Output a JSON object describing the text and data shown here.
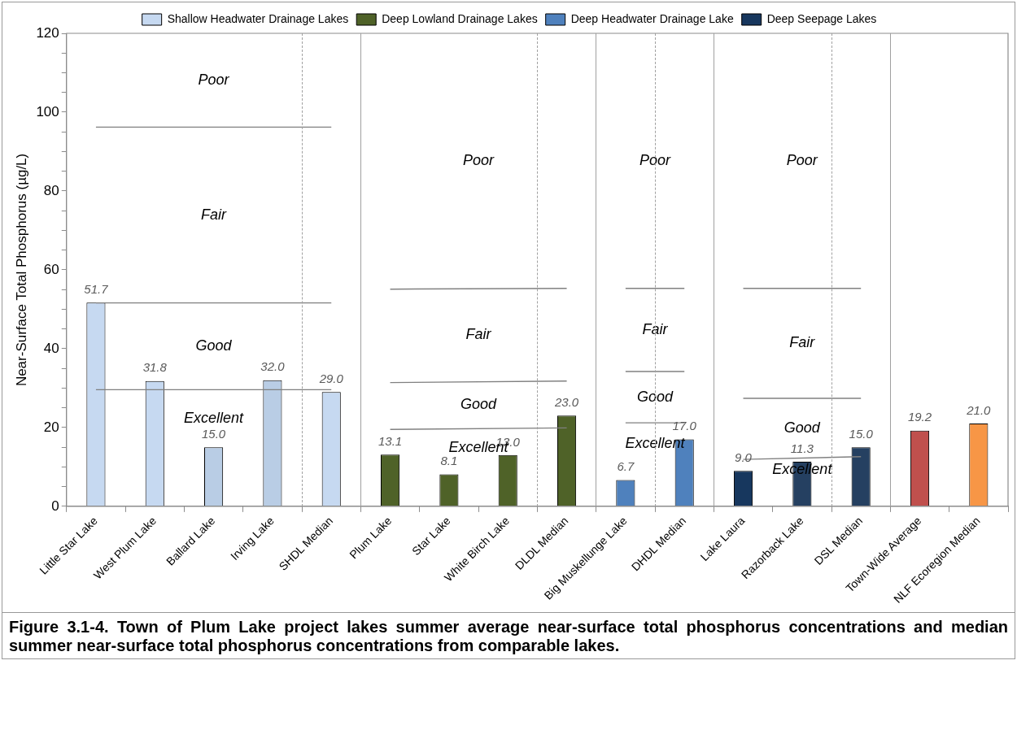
{
  "chart_data": {
    "type": "bar",
    "title": "Figure 3.1-4.  Town of Plum Lake project lakes summer average near-surface total phosphorus concentrations and median summer near-surface total phosphorus concentrations from comparable lakes.",
    "ylabel": "Near-Surface Total Phosphorus (µg/L)",
    "categories": [
      "Little Star Lake",
      "West Plum Lake",
      "Ballard Lake",
      "Irving Lake",
      "SHDL Median",
      "Plum Lake",
      "Star Lake",
      "White Birch Lake",
      "DLDL Median",
      "Big Muskellunge Lake",
      "DHDL Median",
      "Lake Laura",
      "Razorback Lake",
      "DSL Median",
      "Town-Wide Average",
      "NLF Ecoregion Median"
    ],
    "series": [
      {
        "name": "Shallow Headwater Drainage Lakes",
        "color": "#c6d9f1",
        "colors": [
          "#c6d9f1",
          "#c6d9f1",
          "#b9cde5",
          "#b9cde5",
          "#c6d9f1",
          null,
          null,
          null,
          null,
          null,
          null,
          null,
          null,
          null,
          null,
          null
        ],
        "values": [
          51.7,
          31.8,
          15.0,
          32.0,
          29.0,
          null,
          null,
          null,
          null,
          null,
          null,
          null,
          null,
          null,
          null,
          null
        ],
        "value_labels": [
          "51.7",
          "31.8",
          "15.0",
          "32.0",
          "29.0",
          null,
          null,
          null,
          null,
          null,
          null,
          null,
          null,
          null,
          null,
          null
        ]
      },
      {
        "name": "Deep Lowland Drainage Lakes",
        "color": "#4f6228",
        "values": [
          null,
          null,
          null,
          null,
          null,
          13.1,
          8.1,
          13.0,
          23.0,
          null,
          null,
          null,
          null,
          null,
          null,
          null
        ],
        "value_labels": [
          null,
          null,
          null,
          null,
          null,
          "13.1",
          "8.1",
          "13.0",
          "23.0",
          null,
          null,
          null,
          null,
          null,
          null,
          null
        ]
      },
      {
        "name": "Deep Headwater Drainage Lake",
        "color": "#4f81bd",
        "values": [
          null,
          null,
          null,
          null,
          null,
          null,
          null,
          null,
          null,
          6.7,
          17.0,
          null,
          null,
          null,
          null,
          null
        ],
        "value_labels": [
          null,
          null,
          null,
          null,
          null,
          null,
          null,
          null,
          null,
          "6.7",
          "17.0",
          null,
          null,
          null,
          null,
          null
        ]
      },
      {
        "name": "Deep Seepage Lakes",
        "color": "#17375e",
        "colors": [
          null,
          null,
          null,
          null,
          null,
          null,
          null,
          null,
          null,
          null,
          null,
          "#17375e",
          "#254061",
          "#254061",
          null,
          null
        ],
        "values": [
          null,
          null,
          null,
          null,
          null,
          null,
          null,
          null,
          null,
          null,
          null,
          9.0,
          11.3,
          15.0,
          null,
          null
        ],
        "value_labels": [
          null,
          null,
          null,
          null,
          null,
          null,
          null,
          null,
          null,
          null,
          null,
          "9.0",
          "11.3",
          "15.0",
          null,
          null
        ]
      },
      {
        "colors": [
          null,
          null,
          null,
          null,
          null,
          null,
          null,
          null,
          null,
          null,
          null,
          null,
          null,
          null,
          "#c0504d",
          "#f79646"
        ],
        "color": "#c0504d",
        "values": [
          null,
          null,
          null,
          null,
          null,
          null,
          null,
          null,
          null,
          null,
          null,
          null,
          null,
          null,
          19.2,
          21.0
        ],
        "value_labels": [
          null,
          null,
          null,
          null,
          null,
          null,
          null,
          null,
          null,
          null,
          null,
          null,
          null,
          null,
          "19.2",
          "21.0"
        ]
      },
      {
        "type": "line",
        "color": "#808080",
        "values": [
          96.2,
          null,
          null,
          null,
          96.2,
          null,
          null,
          null,
          null,
          null,
          null,
          null,
          null,
          null,
          null,
          null
        ]
      },
      {
        "type": "line",
        "color": "#808080",
        "values": [
          51.6,
          null,
          null,
          null,
          51.6,
          null,
          null,
          null,
          null,
          null,
          null,
          null,
          null,
          null,
          null,
          null
        ]
      },
      {
        "type": "line",
        "color": "#808080",
        "values": [
          29.6,
          null,
          null,
          null,
          29.6,
          null,
          null,
          null,
          null,
          null,
          null,
          null,
          null,
          null,
          null,
          null
        ]
      },
      {
        "type": "line",
        "color": "#808080",
        "values": [
          null,
          null,
          null,
          null,
          null,
          55.1,
          null,
          null,
          55.3,
          null,
          null,
          null,
          null,
          null,
          null,
          null
        ]
      },
      {
        "type": "line",
        "color": "#808080",
        "values": [
          null,
          null,
          null,
          null,
          null,
          31.4,
          null,
          null,
          31.8,
          null,
          null,
          null,
          null,
          null,
          null,
          null
        ]
      },
      {
        "type": "line",
        "color": "#808080",
        "values": [
          null,
          null,
          null,
          null,
          null,
          19.5,
          null,
          null,
          19.9,
          null,
          null,
          null,
          null,
          null,
          null,
          null
        ]
      },
      {
        "type": "line",
        "color": "#808080",
        "values": [
          null,
          null,
          null,
          null,
          null,
          null,
          null,
          null,
          null,
          55.3,
          55.3,
          null,
          null,
          null,
          null,
          null
        ]
      },
      {
        "type": "line",
        "color": "#808080",
        "values": [
          null,
          null,
          null,
          null,
          null,
          null,
          null,
          null,
          null,
          34.2,
          34.2,
          null,
          null,
          null,
          null,
          null
        ]
      },
      {
        "type": "line",
        "color": "#808080",
        "values": [
          null,
          null,
          null,
          null,
          null,
          null,
          null,
          null,
          null,
          21.2,
          21.2,
          null,
          null,
          null,
          null,
          null
        ]
      },
      {
        "type": "line",
        "color": "#808080",
        "values": [
          null,
          null,
          null,
          null,
          null,
          null,
          null,
          null,
          null,
          null,
          null,
          55.3,
          null,
          55.3,
          null,
          null
        ]
      },
      {
        "type": "line",
        "color": "#808080",
        "values": [
          null,
          null,
          null,
          null,
          null,
          null,
          null,
          null,
          null,
          null,
          null,
          27.4,
          null,
          27.4,
          null,
          null
        ]
      },
      {
        "type": "line",
        "color": "#808080",
        "values": [
          null,
          null,
          null,
          null,
          null,
          null,
          null,
          null,
          null,
          null,
          null,
          11.9,
          null,
          12.6,
          null,
          null
        ]
      }
    ],
    "ylim": [
      0,
      120
    ],
    "yticks": [
      0,
      {
        "value": 5,
        "label": null
      },
      {
        "value": 10,
        "label": null
      },
      {
        "value": 15,
        "label": null
      },
      20,
      {
        "value": 25,
        "label": null
      },
      {
        "value": 30,
        "label": null
      },
      {
        "value": 35,
        "label": null
      },
      40,
      {
        "value": 45,
        "label": null
      },
      {
        "value": 50,
        "label": null
      },
      {
        "value": 55,
        "label": null
      },
      60,
      {
        "value": 65,
        "label": null
      },
      {
        "value": 70,
        "label": null
      },
      {
        "value": 75,
        "label": null
      },
      80,
      {
        "value": 85,
        "label": null
      },
      {
        "value": 90,
        "label": null
      },
      {
        "value": 95,
        "label": null
      },
      100,
      {
        "value": 105,
        "label": null
      },
      {
        "value": 110,
        "label": null
      },
      {
        "value": 115,
        "label": null
      },
      120
    ],
    "annotations": [
      "Poor",
      "Fair",
      "Good",
      "Excellent",
      "Poor",
      "Fair",
      "Good",
      "Excellent",
      "Poor",
      "Fair",
      "Good",
      "Excellent",
      "Poor",
      "Fair",
      "Good",
      "Excellent"
    ],
    "legend": "top",
    "marker": "none",
    "line_style": "solid"
  }
}
